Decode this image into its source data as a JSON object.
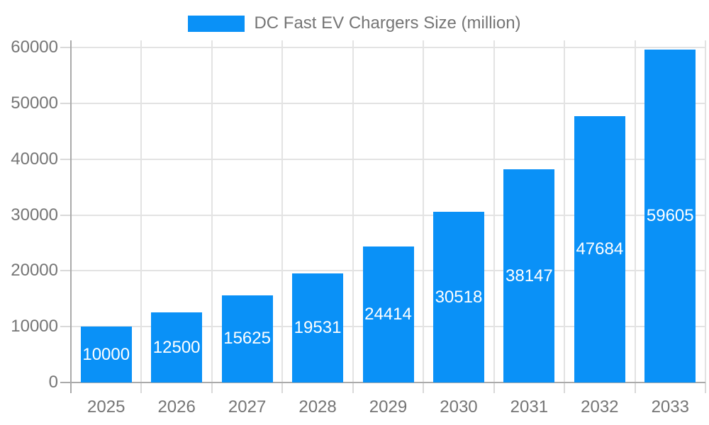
{
  "chart_data": {
    "type": "bar",
    "legend": "DC Fast EV Chargers Size (million)",
    "legend_position": "top",
    "categories": [
      "2025",
      "2026",
      "2027",
      "2028",
      "2029",
      "2030",
      "2031",
      "2032",
      "2033"
    ],
    "series": [
      {
        "name": "DC Fast EV Chargers Size (million)",
        "values": [
          10000,
          12500,
          15625,
          19531,
          24414,
          30518,
          38147,
          47684,
          59605
        ]
      }
    ],
    "value_labels_shown": true,
    "ylim": [
      0,
      60000
    ],
    "yticks": [
      0,
      10000,
      20000,
      30000,
      40000,
      50000,
      60000
    ],
    "grid": true,
    "colors": {
      "bar": "#0a91f7",
      "grid": "#e3e3e3",
      "tick": "#d9d9d9",
      "axis": "#aaaaaa",
      "label": "#757575",
      "value_label": "#ffffff",
      "background": "#ffffff"
    }
  }
}
